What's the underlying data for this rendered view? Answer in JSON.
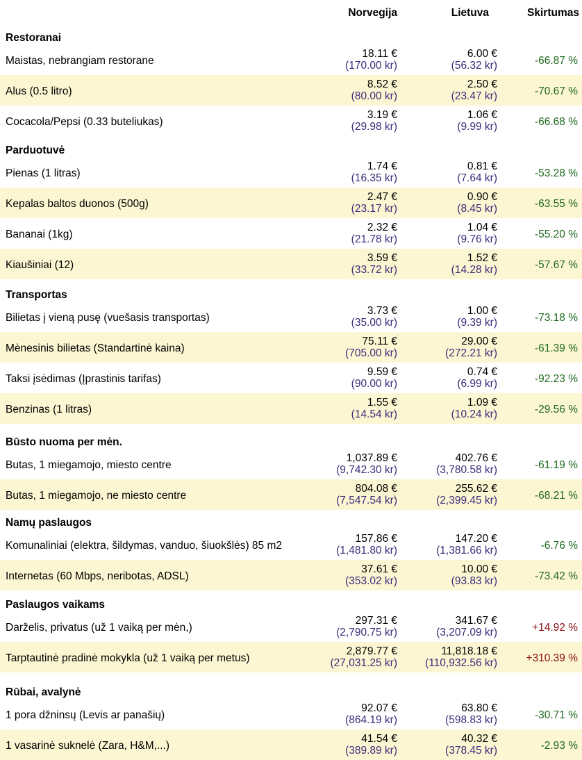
{
  "header": {
    "col_no": "Norvegija",
    "col_lt": "Lietuva",
    "col_diff": "Skirtumas"
  },
  "categories": [
    {
      "title": "Restoranai",
      "items": [
        {
          "label": "Maistas, nebrangiam restorane",
          "no_eur": "18.11 €",
          "no_nok": "(170.00 kr)",
          "lt_eur": "6.00 €",
          "lt_nok": "(56.32 kr)",
          "diff": "-66.87 %"
        },
        {
          "label": "Alus (0.5 litro)",
          "no_eur": "8.52 €",
          "no_nok": "(80.00 kr)",
          "lt_eur": "2.50 €",
          "lt_nok": "(23.47 kr)",
          "diff": "-70.67 %"
        },
        {
          "label": "Cocacola/Pepsi (0.33 buteliukas)",
          "no_eur": "3.19 €",
          "no_nok": "(29.98 kr)",
          "lt_eur": "1.06 €",
          "lt_nok": "(9.99 kr)",
          "diff": "-66.68 %"
        }
      ]
    },
    {
      "title": "Parduotuvė",
      "items": [
        {
          "label": "Pienas (1 litras)",
          "no_eur": "1.74 €",
          "no_nok": "(16.35 kr)",
          "lt_eur": "0.81 €",
          "lt_nok": "(7.64 kr)",
          "diff": "-53.28 %"
        },
        {
          "label": "Kepalas baltos duonos (500g)",
          "no_eur": "2.47 €",
          "no_nok": "(23.17 kr)",
          "lt_eur": "0.90 €",
          "lt_nok": "(8.45 kr)",
          "diff": "-63.55 %"
        },
        {
          "label": "Bananai (1kg)",
          "no_eur": "2.32 €",
          "no_nok": "(21.78 kr)",
          "lt_eur": "1.04 €",
          "lt_nok": "(9.76 kr)",
          "diff": "-55.20 %"
        },
        {
          "label": "Kiaušiniai (12)",
          "no_eur": "3.59 €",
          "no_nok": "(33.72 kr)",
          "lt_eur": "1.52 €",
          "lt_nok": "(14.28 kr)",
          "diff": "-57.67 %"
        }
      ]
    },
    {
      "title": "Transportas",
      "items": [
        {
          "label": "Bilietas į vieną pusę (vuešasis transportas)",
          "no_eur": "3.73 €",
          "no_nok": "(35.00 kr)",
          "lt_eur": "1.00 €",
          "lt_nok": "(9.39 kr)",
          "diff": "-73.18 %"
        },
        {
          "label": "Mėnesinis bilietas (Standartinė kaina)",
          "no_eur": "75.11 €",
          "no_nok": "(705.00 kr)",
          "lt_eur": "29.00 €",
          "lt_nok": "(272.21 kr)",
          "diff": "-61.39 %"
        },
        {
          "label": "Taksi įsėdimas (Įprastinis tarifas)",
          "no_eur": "9.59 €",
          "no_nok": "(90.00 kr)",
          "lt_eur": "0.74 €",
          "lt_nok": "(6.99 kr)",
          "diff": "-92.23 %"
        },
        {
          "label": "Benzinas (1 litras)",
          "no_eur": "1.55 €",
          "no_nok": "(14.54 kr)",
          "lt_eur": "1.09 €",
          "lt_nok": "(10.24 kr)",
          "diff": "-29.56 %"
        }
      ]
    },
    {
      "title": "Būsto nuoma per mėn.",
      "items": [
        {
          "label": "Butas, 1 miegamojo, miesto centre",
          "no_eur": "1,037.89 €",
          "no_nok": "(9,742.30 kr)",
          "lt_eur": "402.76 €",
          "lt_nok": "(3,780.58 kr)",
          "diff": "-61.19 %"
        },
        {
          "label": "Butas, 1 miegamojo, ne miesto centre",
          "no_eur": "804.08 €",
          "no_nok": "(7,547.54 kr)",
          "lt_eur": "255.62 €",
          "lt_nok": "(2,399.45 kr)",
          "diff": "-68.21 %"
        }
      ]
    },
    {
      "title": "Namų paslaugos",
      "items": [
        {
          "label": "Komunaliniai (elektra, šildymas, vanduo, šiuokšlės) 85 m2",
          "no_eur": "157.86 €",
          "no_nok": "(1,481.80 kr)",
          "lt_eur": "147.20 €",
          "lt_nok": "(1,381.66 kr)",
          "diff": "-6.76 %"
        },
        {
          "label": "Internetas (60 Mbps, neribotas, ADSL)",
          "no_eur": "37.61 €",
          "no_nok": "(353.02 kr)",
          "lt_eur": "10.00 €",
          "lt_nok": "(93.83 kr)",
          "diff": "-73.42 %"
        }
      ]
    },
    {
      "title": "Paslaugos vaikams",
      "items": [
        {
          "label": "Darželis, privatus (už 1 vaiką per mėn,)",
          "no_eur": "297.31 €",
          "no_nok": "(2,790.75 kr)",
          "lt_eur": "341.67 €",
          "lt_nok": "(3,207.09 kr)",
          "diff": "+14.92 %"
        },
        {
          "label": "Tarptautinė pradinė mokykla (už 1 vaiką per metus)",
          "no_eur": "2,879.77 €",
          "no_nok": "(27,031.25 kr)",
          "lt_eur": "11,818.18 €",
          "lt_nok": "(110,932.56 kr)",
          "diff": "+310.39 %"
        }
      ]
    },
    {
      "title": "Rūbai, avalynė",
      "items": [
        {
          "label": "1 pora džninsų (Levis ar panašių)",
          "no_eur": "92.07 €",
          "no_nok": "(864.19 kr)",
          "lt_eur": "63.80 €",
          "lt_nok": "(598.83 kr)",
          "diff": "-30.71 %"
        },
        {
          "label": "1 vasarinė suknelė (Zara, H&M,...)",
          "no_eur": "41.54 €",
          "no_nok": "(389.89 kr)",
          "lt_eur": "40.32 €",
          "lt_nok": "(378.45 kr)",
          "diff": "-2.93 %"
        }
      ]
    }
  ]
}
